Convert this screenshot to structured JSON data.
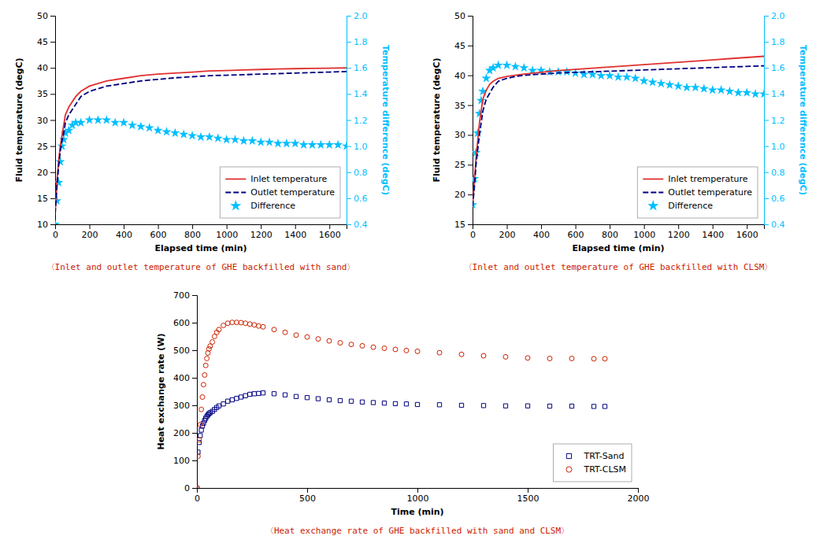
{
  "chart_data": [
    {
      "type": "line",
      "xlabel": "Elapsed time (min)",
      "ylabel": "Fluid temperature (degC)",
      "y2label": "Temperature difference (degC)",
      "xlim": [
        0,
        1700
      ],
      "xticks": [
        0,
        200,
        400,
        600,
        800,
        1000,
        1200,
        1400,
        1600
      ],
      "ylim": [
        10,
        50
      ],
      "yticks": [
        10,
        15,
        20,
        25,
        30,
        35,
        40,
        45,
        50
      ],
      "y2lim": [
        0.4,
        2.0
      ],
      "y2ticks": [
        0.4,
        0.6,
        0.8,
        {
          "value": 1,
          "label": "1.0"
        },
        1.2,
        1.4,
        1.6,
        1.8,
        {
          "value": 2,
          "label": "2.0"
        }
      ],
      "grid": false,
      "legend": "lower right",
      "series": [
        {
          "name": "Inlet temperature",
          "type": "line",
          "color": "#e03030",
          "line_style": "solid",
          "x": [
            0,
            10,
            20,
            30,
            40,
            50,
            60,
            80,
            100,
            120,
            150,
            200,
            250,
            300,
            400,
            500,
            600,
            700,
            800,
            900,
            1000,
            1100,
            1200,
            1300,
            1400,
            1500,
            1600,
            1700
          ],
          "values": [
            12,
            18,
            22,
            25,
            27,
            29,
            31,
            32.5,
            33.5,
            34.5,
            35.5,
            36.5,
            37,
            37.5,
            38,
            38.5,
            38.8,
            39,
            39.2,
            39.4,
            39.5,
            39.6,
            39.7,
            39.8,
            39.85,
            39.9,
            39.95,
            40.0
          ]
        },
        {
          "name": "Outlet temperature",
          "type": "line",
          "color": "#000080",
          "line_style": "dashed",
          "x": [
            0,
            10,
            20,
            30,
            40,
            50,
            60,
            80,
            100,
            120,
            150,
            200,
            250,
            300,
            400,
            500,
            600,
            700,
            800,
            900,
            1000,
            1100,
            1200,
            1300,
            1400,
            1500,
            1600,
            1700
          ],
          "values": [
            12,
            17,
            21,
            24,
            26,
            27.5,
            29.5,
            31,
            32,
            33,
            34.5,
            35.5,
            36,
            36.5,
            37,
            37.5,
            37.8,
            38.1,
            38.3,
            38.5,
            38.6,
            38.7,
            38.8,
            38.9,
            39.0,
            39.1,
            39.2,
            39.3
          ]
        },
        {
          "name": "Difference",
          "type": "scatter",
          "axis": "y2",
          "color": "#00bfff",
          "marker": "star",
          "x": [
            0,
            10,
            20,
            30,
            40,
            50,
            60,
            80,
            100,
            120,
            150,
            200,
            250,
            300,
            350,
            400,
            450,
            500,
            550,
            600,
            650,
            700,
            750,
            800,
            850,
            900,
            950,
            1000,
            1050,
            1100,
            1150,
            1200,
            1250,
            1300,
            1350,
            1400,
            1450,
            1500,
            1550,
            1600,
            1650,
            1700
          ],
          "values": [
            0.4,
            0.58,
            0.72,
            0.88,
            1.0,
            1.05,
            1.1,
            1.12,
            1.16,
            1.18,
            1.18,
            1.2,
            1.2,
            1.2,
            1.18,
            1.18,
            1.16,
            1.15,
            1.14,
            1.12,
            1.11,
            1.1,
            1.09,
            1.08,
            1.07,
            1.07,
            1.06,
            1.05,
            1.05,
            1.04,
            1.04,
            1.03,
            1.03,
            1.02,
            1.02,
            1.02,
            1.01,
            1.01,
            1.01,
            1.01,
            1.01,
            1.0
          ]
        }
      ],
      "annotations": [
        {
          "text": "〈Inlet and outlet temperature of GHE backfilled with sand〉",
          "color": "#cc2200"
        }
      ]
    },
    {
      "type": "line",
      "xlabel": "Elapsed time (min)",
      "ylabel": "Fluid temperature (degC)",
      "y2label": "Temperature difference (degC)",
      "xlim": [
        0,
        1700
      ],
      "xticks": [
        0,
        200,
        400,
        600,
        800,
        1000,
        1200,
        1400,
        1600
      ],
      "ylim": [
        15,
        50
      ],
      "yticks": [
        15,
        20,
        25,
        30,
        35,
        40,
        45,
        50
      ],
      "y2lim": [
        0.4,
        2.0
      ],
      "y2ticks": [
        0.4,
        0.6,
        0.8,
        {
          "value": 1,
          "label": "1.0"
        },
        1.2,
        1.4,
        1.6,
        1.8,
        {
          "value": 2,
          "label": "2.0"
        }
      ],
      "grid": false,
      "legend": "lower right",
      "series": [
        {
          "name": "Inlet tremperature",
          "type": "line",
          "color": "#e03030",
          "line_style": "solid",
          "x": [
            0,
            10,
            20,
            30,
            40,
            50,
            60,
            80,
            100,
            120,
            150,
            200,
            250,
            300,
            400,
            500,
            600,
            700,
            800,
            900,
            1000,
            1100,
            1200,
            1300,
            1400,
            1500,
            1600,
            1700
          ],
          "values": [
            18,
            22,
            26,
            29,
            32,
            34,
            36,
            37.5,
            38.5,
            39,
            39.5,
            39.8,
            40,
            40.2,
            40.5,
            40.8,
            41.0,
            41.2,
            41.4,
            41.6,
            41.8,
            42.0,
            42.2,
            42.4,
            42.6,
            42.8,
            43.0,
            43.2
          ]
        },
        {
          "name": "Outlet temperature",
          "type": "line",
          "color": "#000080",
          "line_style": "dashed",
          "x": [
            0,
            10,
            20,
            30,
            40,
            50,
            60,
            80,
            100,
            120,
            150,
            200,
            250,
            300,
            400,
            500,
            600,
            700,
            800,
            900,
            1000,
            1100,
            1200,
            1300,
            1400,
            1500,
            1600,
            1700
          ],
          "values": [
            18,
            21,
            25,
            27.5,
            30,
            32,
            34,
            36,
            37,
            38,
            39,
            39.5,
            39.8,
            40,
            40.2,
            40.4,
            40.5,
            40.6,
            40.7,
            40.8,
            40.9,
            41.0,
            41.1,
            41.2,
            41.3,
            41.4,
            41.5,
            41.6
          ]
        },
        {
          "name": "Difference",
          "type": "scatter",
          "axis": "y2",
          "color": "#00bfff",
          "marker": "star",
          "x": [
            0,
            10,
            20,
            30,
            40,
            50,
            60,
            80,
            100,
            120,
            150,
            200,
            250,
            300,
            350,
            400,
            450,
            500,
            550,
            600,
            650,
            700,
            750,
            800,
            850,
            900,
            950,
            1000,
            1050,
            1100,
            1150,
            1200,
            1250,
            1300,
            1350,
            1400,
            1450,
            1500,
            1550,
            1600,
            1650,
            1700
          ],
          "values": [
            0.55,
            0.75,
            0.95,
            1.1,
            1.25,
            1.35,
            1.42,
            1.52,
            1.58,
            1.6,
            1.62,
            1.62,
            1.61,
            1.6,
            1.58,
            1.58,
            1.57,
            1.57,
            1.57,
            1.56,
            1.55,
            1.55,
            1.54,
            1.54,
            1.53,
            1.53,
            1.52,
            1.5,
            1.49,
            1.48,
            1.47,
            1.46,
            1.45,
            1.45,
            1.44,
            1.43,
            1.43,
            1.42,
            1.41,
            1.41,
            1.4,
            1.4
          ]
        }
      ],
      "annotations": [
        {
          "text": "〈Inlet and outlet temperature of GHE backfilled with CLSM〉",
          "color": "#cc2200"
        }
      ]
    },
    {
      "type": "scatter",
      "xlabel": "Time (min)",
      "ylabel": "Heat exchange rate (W)",
      "xlim": [
        0,
        2000
      ],
      "xticks": [
        0,
        500,
        1000,
        1500,
        2000
      ],
      "ylim": [
        0,
        700
      ],
      "yticks": [
        0,
        100,
        200,
        300,
        400,
        500,
        600,
        700
      ],
      "grid": false,
      "legend": "lower right",
      "series": [
        {
          "name": "TRT-Sand",
          "color": "#000080",
          "marker": "square",
          "x": [
            0,
            5,
            10,
            15,
            20,
            25,
            30,
            35,
            40,
            45,
            50,
            55,
            60,
            70,
            80,
            90,
            100,
            120,
            140,
            160,
            180,
            200,
            220,
            240,
            260,
            280,
            300,
            350,
            400,
            450,
            500,
            550,
            600,
            650,
            700,
            750,
            800,
            850,
            900,
            950,
            1000,
            1100,
            1200,
            1300,
            1400,
            1500,
            1600,
            1700,
            1800,
            1850
          ],
          "values": [
            0,
            130,
            165,
            190,
            210,
            225,
            235,
            245,
            253,
            260,
            265,
            270,
            273,
            278,
            285,
            292,
            298,
            305,
            315,
            320,
            325,
            330,
            335,
            340,
            342,
            343,
            345,
            342,
            338,
            332,
            328,
            324,
            320,
            317,
            315,
            312,
            310,
            308,
            306,
            305,
            303,
            302,
            300,
            299,
            298,
            298,
            297,
            297,
            296,
            296
          ]
        },
        {
          "name": "TRT-CLSM",
          "color": "#cc2200",
          "marker": "circle",
          "x": [
            0,
            5,
            10,
            15,
            20,
            25,
            30,
            35,
            40,
            45,
            50,
            55,
            60,
            70,
            80,
            90,
            100,
            120,
            140,
            160,
            180,
            200,
            220,
            240,
            260,
            280,
            300,
            350,
            400,
            450,
            500,
            550,
            600,
            650,
            700,
            750,
            800,
            850,
            900,
            950,
            1000,
            1100,
            1200,
            1300,
            1400,
            1500,
            1600,
            1700,
            1800,
            1850
          ],
          "values": [
            0,
            115,
            175,
            230,
            285,
            330,
            375,
            410,
            445,
            470,
            490,
            505,
            515,
            530,
            550,
            565,
            575,
            590,
            598,
            601,
            601,
            600,
            598,
            595,
            592,
            588,
            585,
            575,
            565,
            555,
            548,
            541,
            534,
            527,
            521,
            516,
            511,
            507,
            503,
            499,
            496,
            491,
            485,
            480,
            476,
            472,
            470,
            470,
            469,
            469
          ]
        }
      ],
      "annotations": [
        {
          "text": "〈Heat exchange rate of GHE backfilled with sand and CLSM〉",
          "color": "#cc2200"
        }
      ]
    }
  ]
}
